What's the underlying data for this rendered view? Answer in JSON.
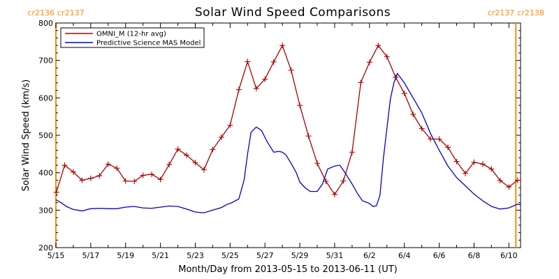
{
  "chart_data": {
    "type": "line",
    "title": "Solar Wind Speed Comparisons",
    "xlabel": "Month/Day from 2013-05-15 to 2013-06-11 (UT)",
    "ylabel": "Solar Wind Speed (km/s)",
    "ylim": [
      200,
      800
    ],
    "xlim": [
      0,
      26.67
    ],
    "yticks": [
      200,
      300,
      400,
      500,
      600,
      700,
      800
    ],
    "xticks": [
      {
        "x": 0,
        "label": "5/15"
      },
      {
        "x": 2,
        "label": "5/17"
      },
      {
        "x": 4,
        "label": "5/19"
      },
      {
        "x": 6,
        "label": "5/21"
      },
      {
        "x": 8,
        "label": "5/23"
      },
      {
        "x": 10,
        "label": "5/25"
      },
      {
        "x": 12,
        "label": "5/27"
      },
      {
        "x": 14,
        "label": "5/29"
      },
      {
        "x": 16,
        "label": "5/31"
      },
      {
        "x": 18,
        "label": "6/2"
      },
      {
        "x": 20,
        "label": "6/4"
      },
      {
        "x": 22,
        "label": "6/6"
      },
      {
        "x": 24,
        "label": "6/8"
      },
      {
        "x": 26,
        "label": "6/10"
      }
    ],
    "carrington_markers": [
      {
        "x": 0,
        "left_label": "cr2136",
        "right_label": "cr2137"
      },
      {
        "x": 26.4,
        "left_label": "cr2137",
        "right_label": "cr2138"
      }
    ],
    "legend": {
      "position": "top-left"
    },
    "series": [
      {
        "name": "OMNI_M (12-hr avg)",
        "color": "#aa0000",
        "markers": "plus",
        "x": [
          0.03,
          0.5,
          1,
          1.5,
          2,
          2.5,
          3,
          3.5,
          4,
          4.5,
          5,
          5.5,
          6,
          6.5,
          7,
          7.5,
          8,
          8.5,
          9,
          9.5,
          10,
          10.5,
          11,
          11.5,
          12,
          12.5,
          13,
          13.5,
          14,
          14.5,
          15,
          15.5,
          16,
          16.5,
          17,
          17.5,
          18,
          18.5,
          19,
          19.5,
          20,
          20.5,
          21,
          21.5,
          22,
          22.5,
          23,
          23.5,
          24,
          24.5,
          25,
          25.5,
          26,
          26.5
        ],
        "y": [
          348,
          420,
          402,
          380,
          385,
          392,
          423,
          412,
          378,
          377,
          393,
          396,
          382,
          422,
          463,
          447,
          427,
          408,
          462,
          495,
          527,
          622,
          697,
          625,
          650,
          696,
          740,
          674,
          580,
          498,
          425,
          377,
          342,
          378,
          455,
          641,
          695,
          740,
          710,
          655,
          612,
          556,
          518,
          490,
          490,
          468,
          430,
          398,
          428,
          423,
          410,
          379,
          362,
          380
        ]
      },
      {
        "name": "Predictive Science MAS Model",
        "color": "#0000cc",
        "markers": "none",
        "x": [
          0,
          0.3,
          0.6,
          1,
          1.5,
          2,
          2.5,
          3,
          3.5,
          4,
          4.5,
          5,
          5.5,
          6,
          6.5,
          7,
          7.5,
          8,
          8.5,
          9,
          9.5,
          9.8,
          10.1,
          10.5,
          10.8,
          11,
          11.2,
          11.5,
          11.8,
          12.1,
          12.5,
          12.8,
          13,
          13.2,
          13.5,
          13.8,
          14,
          14.3,
          14.6,
          15,
          15.3,
          15.6,
          16,
          16.3,
          16.6,
          17,
          17.3,
          17.6,
          18,
          18.2,
          18.4,
          18.6,
          18.8,
          19,
          19.2,
          19.4,
          19.6,
          20,
          20.5,
          21,
          21.5,
          22,
          22.5,
          23,
          23.5,
          24,
          24.5,
          25,
          25.5,
          26,
          26.5,
          26.7
        ],
        "y": [
          328,
          320,
          310,
          302,
          298,
          304,
          305,
          304,
          304,
          308,
          310,
          306,
          305,
          308,
          311,
          310,
          303,
          295,
          293,
          300,
          307,
          315,
          320,
          330,
          380,
          450,
          508,
          522,
          513,
          485,
          455,
          457,
          455,
          448,
          425,
          400,
          375,
          360,
          350,
          350,
          370,
          410,
          418,
          420,
          400,
          370,
          345,
          325,
          318,
          310,
          312,
          340,
          440,
          520,
          597,
          640,
          665,
          640,
          600,
          560,
          505,
          460,
          418,
          387,
          365,
          343,
          325,
          310,
          303,
          306,
          316,
          314
        ]
      }
    ]
  }
}
